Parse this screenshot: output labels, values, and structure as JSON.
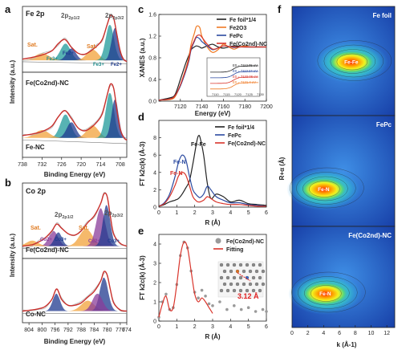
{
  "chart_data": [
    {
      "panel": "a",
      "type": "line",
      "title": "Fe 2p",
      "xlabel": "Binding Energy (eV)",
      "ylabel": "Intensity (a.u.)",
      "xlim": [
        738,
        706
      ],
      "x_ticks": [
        "738",
        "732",
        "726",
        "720",
        "714",
        "708"
      ],
      "subplots": [
        {
          "label": "Fe(Co2nd)-NC",
          "annotations": [
            "2p1/2",
            "2p3/2",
            "Sat.",
            "Sat.",
            "Fe3+",
            "Fe2+",
            "Fe3+",
            "Fe2+"
          ],
          "envelope": {
            "x": [
              738,
              735,
              732,
              729,
              727,
              725,
              723,
              721,
              719,
              717,
              715,
              713.5,
              712,
              711,
              710,
              709,
              708,
              707,
              706
            ],
            "y": [
              0.22,
              0.25,
              0.29,
              0.36,
              0.48,
              0.55,
              0.42,
              0.32,
              0.3,
              0.36,
              0.45,
              0.55,
              0.8,
              0.95,
              0.9,
              0.62,
              0.35,
              0.22,
              0.18
            ]
          }
        },
        {
          "label": "Fe-NC",
          "envelope": {
            "x": [
              738,
              735,
              732,
              729,
              727,
              725,
              723,
              721,
              719,
              717,
              715,
              713.5,
              712,
              711,
              710,
              709,
              708,
              707,
              706
            ],
            "y": [
              0.28,
              0.3,
              0.33,
              0.4,
              0.52,
              0.6,
              0.5,
              0.38,
              0.34,
              0.38,
              0.46,
              0.56,
              0.8,
              0.94,
              0.88,
              0.6,
              0.36,
              0.26,
              0.22
            ]
          }
        }
      ]
    },
    {
      "panel": "b",
      "type": "line",
      "title": "Co 2p",
      "xlabel": "Binding Energy (eV)",
      "ylabel": "Intensity (a.u.)",
      "xlim": [
        806,
        774
      ],
      "x_ticks": [
        "804",
        "800",
        "796",
        "792",
        "788",
        "784",
        "780",
        "776",
        "774"
      ],
      "subplots": [
        {
          "label": "Fe(Co2nd)-NC",
          "annotations": [
            "2p1/2",
            "2p3/2",
            "Sat.",
            "Sat.",
            "Co2+",
            "Co3+",
            "Co2+",
            "Co3+"
          ],
          "envelope": {
            "x": [
              806,
              803,
              801,
              799,
              797,
              795.5,
              794,
              792,
              790,
              788,
              786,
              784,
              782,
              781,
              780,
              779,
              778,
              776,
              774
            ],
            "y": [
              0.18,
              0.2,
              0.24,
              0.3,
              0.4,
              0.5,
              0.44,
              0.36,
              0.34,
              0.4,
              0.52,
              0.62,
              0.8,
              0.94,
              0.9,
              0.6,
              0.35,
              0.22,
              0.18
            ]
          }
        },
        {
          "label": "Co-NC",
          "envelope": {
            "x": [
              806,
              803,
              801,
              799,
              797,
              795.5,
              794,
              792,
              790,
              788,
              786,
              784,
              782,
              781,
              780,
              779,
              778,
              776,
              774
            ],
            "y": [
              0.2,
              0.22,
              0.24,
              0.28,
              0.4,
              0.58,
              0.4,
              0.3,
              0.3,
              0.34,
              0.44,
              0.54,
              0.72,
              0.88,
              0.82,
              0.56,
              0.34,
              0.22,
              0.2
            ]
          }
        }
      ]
    },
    {
      "panel": "c",
      "type": "line",
      "xlabel": "Energy (eV)",
      "ylabel": "XANES (a.u.)",
      "xlim": [
        7100,
        7200
      ],
      "ylim": [
        0.0,
        1.6
      ],
      "x_ticks": [
        7120,
        7140,
        7160,
        7180,
        7200
      ],
      "y_ticks": [
        "0.0",
        "0.4",
        "0.8",
        "1.2",
        "1.6"
      ],
      "inset_labels": [
        "E0 = 7121.4 eV",
        "E0 = 7122.06 eV",
        "E0 = 7112.24 eV",
        "E0 = 7112.05 eV"
      ],
      "inset_ticks": [
        "7110",
        "7115",
        "7120",
        "7125",
        "7130"
      ],
      "x": [
        7100,
        7110,
        7115,
        7120,
        7125,
        7128,
        7130,
        7133,
        7135,
        7138,
        7140,
        7145,
        7150,
        7155,
        7160,
        7165,
        7170,
        7175,
        7180,
        7185,
        7190,
        7195,
        7200
      ],
      "series": [
        {
          "name": "Fe foil*1/4",
          "color": "#222222",
          "values": [
            0.02,
            0.06,
            0.12,
            0.4,
            0.7,
            0.85,
            0.95,
            1.0,
            1.02,
            1.0,
            0.98,
            1.02,
            1.05,
            1.0,
            0.98,
            1.0,
            1.02,
            1.01,
            1.0,
            1.0,
            1.0,
            1.0,
            1.0
          ]
        },
        {
          "name": "Fe2O3",
          "color": "#f07a24",
          "values": [
            0.02,
            0.03,
            0.08,
            0.3,
            0.6,
            0.82,
            1.05,
            1.25,
            1.38,
            1.36,
            1.2,
            1.0,
            0.9,
            0.95,
            1.05,
            1.0,
            0.96,
            1.0,
            1.02,
            1.0,
            1.0,
            1.0,
            1.0
          ]
        },
        {
          "name": "FePc",
          "color": "#2b4aa0",
          "values": [
            0.02,
            0.04,
            0.1,
            0.28,
            0.55,
            0.75,
            0.95,
            1.1,
            1.18,
            1.15,
            1.1,
            1.02,
            0.95,
            0.98,
            1.02,
            1.01,
            0.99,
            1.0,
            1.0,
            1.0,
            1.0,
            1.0,
            1.0
          ]
        },
        {
          "name": "Fe(Co2nd)-NC",
          "color": "#d9342b",
          "values": [
            0.02,
            0.04,
            0.1,
            0.3,
            0.58,
            0.78,
            0.98,
            1.12,
            1.2,
            1.22,
            1.18,
            1.05,
            0.96,
            0.98,
            1.02,
            1.01,
            1.0,
            1.0,
            1.0,
            1.0,
            1.0,
            1.0,
            1.0
          ]
        }
      ]
    },
    {
      "panel": "d",
      "type": "line",
      "xlabel": "R (Å)",
      "ylabel": "FT k2c(k) (Å-3)",
      "xlim": [
        0,
        6
      ],
      "ylim": [
        0,
        10
      ],
      "x_ticks": [
        0,
        1,
        2,
        3,
        4,
        5,
        6
      ],
      "y_ticks": [
        0,
        2,
        4,
        6,
        8
      ],
      "annotations": [
        "Fe-Fe",
        "Fe-N",
        "Fe-N"
      ],
      "x": [
        0,
        0.3,
        0.6,
        0.9,
        1.1,
        1.3,
        1.5,
        1.7,
        1.9,
        2.1,
        2.2,
        2.3,
        2.5,
        2.7,
        2.9,
        3.2,
        3.6,
        4.0,
        4.5,
        5.0,
        5.5,
        6.0
      ],
      "series": [
        {
          "name": "Fe foil*1/4",
          "color": "#222222",
          "values": [
            0.1,
            0.3,
            0.6,
            0.8,
            1.0,
            1.5,
            2.2,
            3.0,
            5.0,
            7.4,
            8.2,
            8.0,
            6.0,
            2.8,
            1.0,
            1.5,
            1.2,
            0.6,
            0.8,
            0.4,
            0.3,
            0.2
          ]
        },
        {
          "name": "FePc",
          "color": "#2b4aa0",
          "values": [
            0.1,
            0.5,
            1.5,
            3.5,
            5.2,
            6.0,
            5.5,
            3.6,
            2.0,
            1.4,
            1.2,
            1.1,
            1.5,
            2.4,
            2.0,
            1.2,
            0.8,
            0.5,
            0.5,
            0.3,
            0.2,
            0.1
          ]
        },
        {
          "name": "Fe(Co2nd)-NC",
          "color": "#d9342b",
          "values": [
            0.1,
            0.4,
            1.2,
            2.5,
            3.6,
            4.0,
            3.7,
            2.5,
            1.2,
            0.7,
            0.6,
            0.6,
            0.8,
            1.2,
            1.0,
            0.6,
            0.4,
            0.3,
            0.3,
            0.2,
            0.1,
            0.1
          ]
        }
      ]
    },
    {
      "panel": "e",
      "type": "line",
      "xlabel": "R (Å)",
      "ylabel": "FT k2c(k) (Å-3)",
      "xlim": [
        0,
        6
      ],
      "ylim": [
        0,
        4.5
      ],
      "x_ticks": [
        0,
        1,
        2,
        3,
        4,
        5,
        6
      ],
      "y_ticks": [
        0,
        1,
        2,
        3,
        4
      ],
      "inset_label": "3.12 Å",
      "x": [
        0,
        0.2,
        0.4,
        0.6,
        0.8,
        1.0,
        1.2,
        1.4,
        1.6,
        1.8,
        2.0,
        2.2,
        2.4,
        2.6,
        2.8,
        3.0,
        3.4,
        3.8,
        4.2,
        4.6,
        5.0,
        5.4,
        5.8,
        6.0
      ],
      "series": [
        {
          "name": "Fe(Co2nd)-NC",
          "color": "#9a9a9a",
          "values": [
            0.2,
            1.0,
            1.4,
            0.6,
            0.7,
            1.9,
            3.4,
            4.1,
            3.8,
            2.6,
            1.5,
            1.2,
            1.6,
            1.3,
            0.9,
            0.8,
            1.0,
            0.6,
            0.8,
            0.6,
            0.7,
            0.5,
            0.6,
            0.5
          ]
        },
        {
          "name": "Fitting",
          "color": "#d9342b",
          "values": [
            0.2,
            0.9,
            1.3,
            0.6,
            0.7,
            1.9,
            3.4,
            4.1,
            3.8,
            2.6,
            1.4,
            1.0,
            1.2,
            1.0,
            0.7,
            0.4,
            null,
            null,
            null,
            null,
            null,
            null,
            null,
            null
          ]
        }
      ]
    },
    {
      "panel": "f",
      "type": "heatmap",
      "xlabel": "k (Å-1)",
      "ylabel": "R+α (Å)",
      "x_ticks": [
        0,
        2,
        4,
        6,
        8,
        10,
        12
      ],
      "subplots": [
        {
          "label": "Fe foil",
          "peak_label": "Fe-Fe",
          "peak": {
            "k": 7.5,
            "R": 2.2
          }
        },
        {
          "label": "FePc",
          "peak_label": "Fe-N",
          "peak": {
            "k": 4.0,
            "R": 1.5
          }
        },
        {
          "label": "Fe(Co2nd)-NC",
          "peak_label": "Fe-N",
          "peak": {
            "k": 4.2,
            "R": 1.5
          }
        }
      ]
    }
  ]
}
